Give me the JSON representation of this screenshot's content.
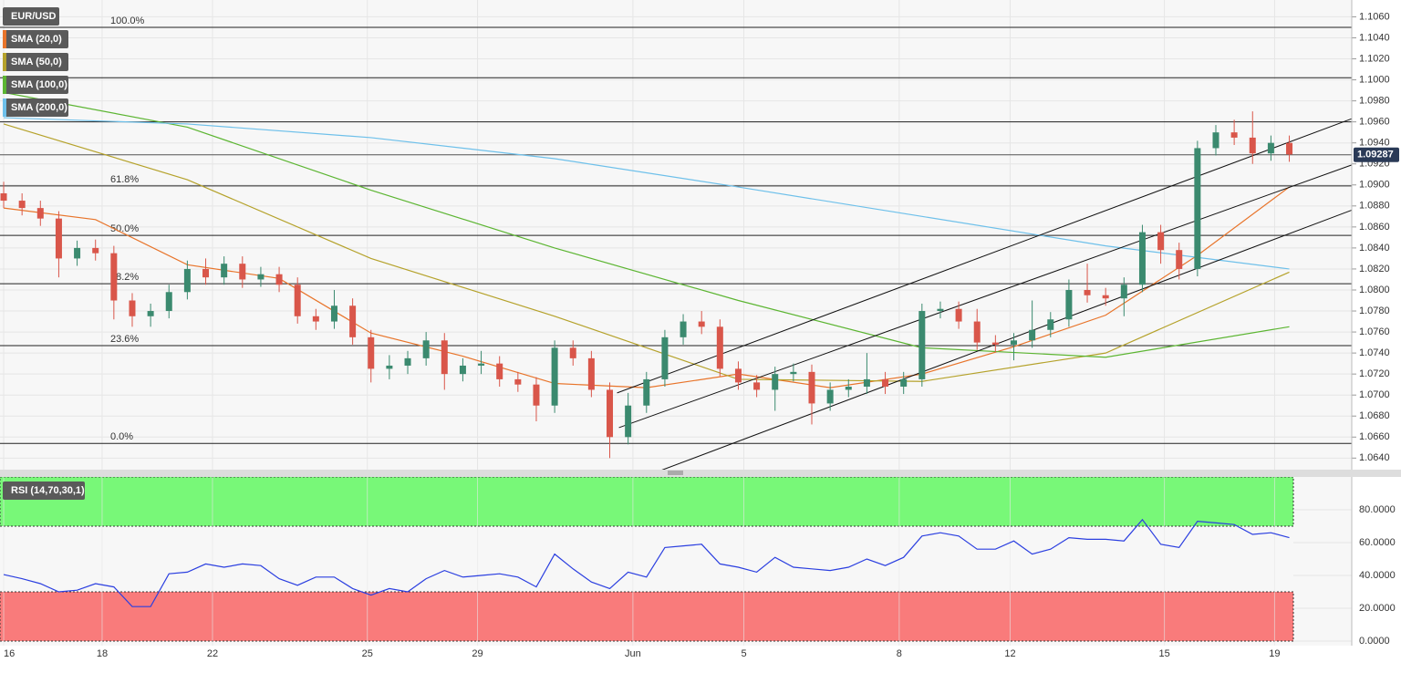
{
  "chart_data": [
    {
      "type": "candlestick",
      "title": "EUR/USD",
      "open": [
        1.0892,
        1.0885,
        1.0878,
        1.0868,
        1.083,
        1.084,
        1.0835,
        1.079,
        1.0775,
        1.078,
        1.0798,
        1.082,
        1.0812,
        1.0825,
        1.081,
        1.0815,
        1.0805,
        1.0775,
        1.077,
        1.0785,
        1.0755,
        1.0725,
        1.0728,
        1.0735,
        1.0752,
        1.072,
        1.0728,
        1.073,
        1.0715,
        1.071,
        1.069,
        1.0745,
        1.0735,
        1.0705,
        1.066,
        1.069,
        1.0715,
        1.0755,
        1.077,
        1.0765,
        1.0725,
        1.0712,
        1.0705,
        1.072,
        1.0722,
        1.0692,
        1.0705,
        1.0708,
        1.0715,
        1.0708,
        1.0715,
        1.078,
        1.0782,
        1.077,
        1.075,
        1.0748,
        1.0752,
        1.0762,
        1.0772,
        1.08,
        1.0795,
        1.0792,
        1.0805,
        1.0855,
        1.0838,
        1.082,
        1.0935,
        1.095,
        1.0945,
        1.093,
        1.094
      ],
      "high": [
        1.0903,
        1.0892,
        1.0885,
        1.0875,
        1.0847,
        1.0848,
        1.0842,
        1.0797,
        1.0787,
        1.0805,
        1.0828,
        1.083,
        1.0832,
        1.0832,
        1.0822,
        1.0822,
        1.0812,
        1.0782,
        1.08,
        1.0792,
        1.0762,
        1.0738,
        1.0742,
        1.076,
        1.0759,
        1.0735,
        1.0742,
        1.0737,
        1.0722,
        1.0717,
        1.0752,
        1.0752,
        1.0742,
        1.0712,
        1.0702,
        1.0722,
        1.0762,
        1.0777,
        1.078,
        1.0772,
        1.0732,
        1.0719,
        1.0727,
        1.073,
        1.0729,
        1.0712,
        1.0715,
        1.074,
        1.0722,
        1.0722,
        1.0787,
        1.0789,
        1.0789,
        1.0782,
        1.0757,
        1.0759,
        1.079,
        1.0779,
        1.081,
        1.0825,
        1.0802,
        1.0812,
        1.0862,
        1.0862,
        1.0845,
        1.0942,
        1.0957,
        1.0962,
        1.097,
        1.0947,
        1.0947
      ],
      "low": [
        1.0878,
        1.0871,
        1.0861,
        1.0812,
        1.0823,
        1.0828,
        1.0772,
        1.0765,
        1.0765,
        1.0773,
        1.0791,
        1.0805,
        1.0805,
        1.0802,
        1.0803,
        1.0798,
        1.0768,
        1.0762,
        1.0763,
        1.0748,
        1.0712,
        1.0715,
        1.072,
        1.0728,
        1.0705,
        1.0713,
        1.072,
        1.0708,
        1.0703,
        1.0675,
        1.0683,
        1.0728,
        1.0698,
        1.064,
        1.0653,
        1.0683,
        1.0708,
        1.0748,
        1.0758,
        1.0718,
        1.0705,
        1.0698,
        1.0685,
        1.0713,
        1.0672,
        1.0685,
        1.0698,
        1.0701,
        1.0701,
        1.0701,
        1.0708,
        1.0773,
        1.0763,
        1.0743,
        1.0741,
        1.0733,
        1.0745,
        1.0755,
        1.0765,
        1.0788,
        1.0785,
        1.0775,
        1.0798,
        1.0825,
        1.081,
        1.0813,
        1.0928,
        1.0938,
        1.092,
        1.0923,
        1.0922
      ],
      "close": [
        1.0885,
        1.0878,
        1.0868,
        1.083,
        1.084,
        1.0835,
        1.079,
        1.0775,
        1.078,
        1.0798,
        1.082,
        1.0812,
        1.0825,
        1.081,
        1.0815,
        1.0805,
        1.0775,
        1.077,
        1.0785,
        1.0755,
        1.0725,
        1.0728,
        1.0735,
        1.0752,
        1.072,
        1.0728,
        1.073,
        1.0715,
        1.071,
        1.069,
        1.0745,
        1.0735,
        1.0705,
        1.066,
        1.069,
        1.0715,
        1.0755,
        1.077,
        1.0765,
        1.0725,
        1.0712,
        1.0705,
        1.072,
        1.0722,
        1.0692,
        1.0705,
        1.0708,
        1.0715,
        1.0708,
        1.0715,
        1.078,
        1.0782,
        1.077,
        1.075,
        1.0748,
        1.0752,
        1.0762,
        1.0772,
        1.08,
        1.0795,
        1.0792,
        1.0805,
        1.0855,
        1.0838,
        1.082,
        1.0935,
        1.095,
        1.0945,
        1.093,
        1.094,
        1.0929
      ],
      "up_color": "#3b8a6f",
      "down_color": "#d9564a",
      "series": [
        {
          "name": "SMA (20,0)",
          "color": "#e8742a",
          "x": [
            0,
            5,
            10,
            15,
            20,
            25,
            30,
            35,
            40,
            45,
            50,
            55,
            60,
            65,
            70
          ],
          "values": [
            1.0878,
            1.0867,
            1.0824,
            1.0811,
            1.0759,
            1.0737,
            1.0711,
            1.0707,
            1.072,
            1.0707,
            1.072,
            1.0746,
            1.0776,
            1.0833,
            1.0898
          ]
        },
        {
          "name": "SMA (50,0)",
          "color": "#b5a22b",
          "x": [
            0,
            10,
            20,
            30,
            40,
            50,
            60,
            70
          ],
          "values": [
            1.0958,
            1.0905,
            1.083,
            1.0775,
            1.0715,
            1.0713,
            1.074,
            1.0817
          ]
        },
        {
          "name": "SMA (100,0)",
          "color": "#5cb532",
          "x": [
            0,
            10,
            20,
            30,
            40,
            50,
            60,
            70
          ],
          "values": [
            1.0988,
            1.0955,
            1.0895,
            1.084,
            1.079,
            1.0745,
            1.0736,
            1.0765
          ]
        },
        {
          "name": "SMA (200,0)",
          "color": "#6ec0ea",
          "x": [
            0,
            10,
            20,
            30,
            40,
            50,
            60,
            70
          ],
          "values": [
            1.0964,
            1.0958,
            1.0945,
            1.0925,
            1.0898,
            1.087,
            1.0842,
            1.082
          ]
        }
      ],
      "levels": [
        {
          "value": 1.105,
          "label": "100.0%"
        },
        {
          "value": 1.0899,
          "label": "61.8%"
        },
        {
          "value": 1.0852,
          "label": "50.0%"
        },
        {
          "value": 1.0806,
          "label": "38.2%"
        },
        {
          "value": 1.0747,
          "label": "23.6%"
        },
        {
          "value": 1.0654,
          "label": "0.0%"
        }
      ],
      "lines": [
        1.1002,
        1.096
      ],
      "trendlines": [
        {
          "x": [
            33.4,
            73.4
          ],
          "values": [
            1.0702,
            1.0963
          ]
        },
        {
          "x": [
            33.5,
            73.4
          ],
          "values": [
            1.0669,
            1.0919
          ]
        },
        {
          "x": [
            35.75,
            73.4
          ],
          "values": [
            1.0628,
            1.0876
          ]
        }
      ],
      "last_price": 1.09287,
      "xlim": [
        -0.2,
        73.4
      ],
      "ylim": [
        1.0629,
        1.1076
      ],
      "yticks": [
        {
          "value": 1.064,
          "label": "1.0640"
        },
        {
          "value": 1.066,
          "label": "1.0660"
        },
        {
          "value": 1.068,
          "label": "1.0680"
        },
        {
          "value": 1.07,
          "label": "1.0700"
        },
        {
          "value": 1.072,
          "label": "1.0720"
        },
        {
          "value": 1.074,
          "label": "1.0740"
        },
        {
          "value": 1.076,
          "label": "1.0760"
        },
        {
          "value": 1.078,
          "label": "1.0780"
        },
        {
          "value": 1.08,
          "label": "1.0800"
        },
        {
          "value": 1.082,
          "label": "1.0820"
        },
        {
          "value": 1.084,
          "label": "1.0840"
        },
        {
          "value": 1.086,
          "label": "1.0860"
        },
        {
          "value": 1.088,
          "label": "1.0880"
        },
        {
          "value": 1.09,
          "label": "1.0900"
        },
        {
          "value": 1.092,
          "label": "1.0920"
        },
        {
          "value": 1.094,
          "label": "1.0940"
        },
        {
          "value": 1.096,
          "label": "1.0960"
        },
        {
          "value": 1.098,
          "label": "1.0980"
        },
        {
          "value": 1.1,
          "label": "1.1000"
        },
        {
          "value": 1.102,
          "label": "1.1020"
        },
        {
          "value": 1.104,
          "label": "1.1040"
        },
        {
          "value": 1.106,
          "label": "1.1060"
        }
      ],
      "grid": true
    },
    {
      "type": "line",
      "title": "RSI (14,70,30,1)",
      "series": [
        {
          "color": "#2b3fe0",
          "values": [
            40.5,
            38,
            35,
            30,
            31,
            35,
            33,
            21,
            21,
            41,
            42,
            47,
            45,
            47,
            46,
            38,
            34,
            39,
            39,
            32,
            28,
            32,
            30,
            38,
            43,
            39,
            40,
            41,
            39,
            33,
            53,
            44,
            36,
            32,
            42,
            39,
            57,
            58,
            59,
            47,
            45,
            42,
            51,
            45,
            44,
            43,
            45,
            50,
            46,
            51,
            64,
            66,
            64,
            56,
            56,
            61,
            53,
            56,
            63,
            62,
            62,
            61,
            74,
            59,
            57,
            73,
            72,
            71,
            65,
            66,
            63
          ]
        }
      ],
      "zones": [
        {
          "range": [
            70,
            100
          ],
          "color": "#78f878"
        },
        {
          "range": [
            0,
            30
          ],
          "color": "#f97b7b"
        }
      ],
      "xlim": [
        -0.2,
        73.4
      ],
      "ylim": [
        0,
        100
      ],
      "yticks": [
        {
          "value": 0,
          "label": "0.0000"
        },
        {
          "value": 20,
          "label": "20.0000"
        },
        {
          "value": 40,
          "label": "40.0000"
        },
        {
          "value": 60,
          "label": "60.0000"
        },
        {
          "value": 80,
          "label": "80.0000"
        }
      ],
      "xticks": [
        {
          "value": 0,
          "label": "16"
        },
        {
          "value": 5.36,
          "label": "18"
        },
        {
          "value": 11.37,
          "label": "22"
        },
        {
          "value": 19.8,
          "label": "25"
        },
        {
          "value": 25.8,
          "label": "29"
        },
        {
          "value": 34.26,
          "label": "Jun"
        },
        {
          "value": 40.3,
          "label": "5"
        },
        {
          "value": 48.76,
          "label": "8"
        },
        {
          "value": 54.8,
          "label": "12"
        },
        {
          "value": 63.2,
          "label": "15"
        },
        {
          "value": 69.2,
          "label": "19"
        }
      ],
      "grid": true
    }
  ]
}
